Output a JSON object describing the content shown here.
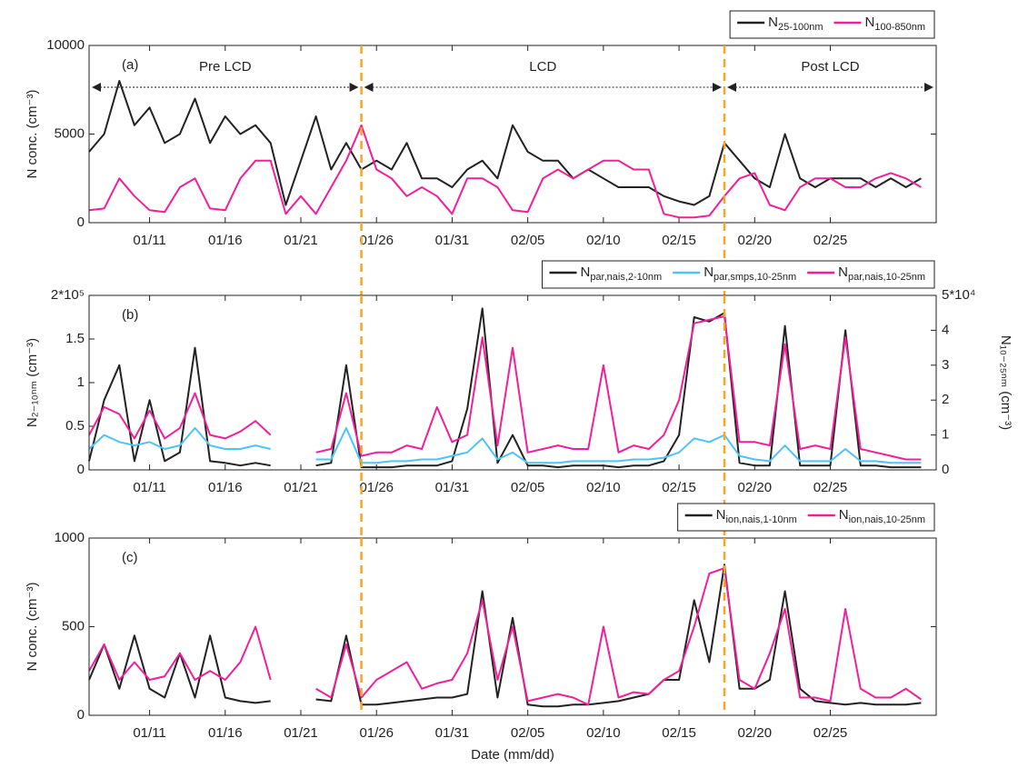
{
  "chart_data": [
    {
      "type": "line",
      "panel_label": "(a)",
      "ylabel": "N conc. (cm⁻³)",
      "period_labels": [
        "Pre LCD",
        "LCD",
        "Post LCD"
      ],
      "vlines": [
        "01/25",
        "02/18"
      ],
      "vline_color": "#f5a623",
      "legend": "above-right",
      "x": [
        "01/07",
        "01/08",
        "01/09",
        "01/10",
        "01/11",
        "01/12",
        "01/13",
        "01/14",
        "01/15",
        "01/16",
        "01/17",
        "01/18",
        "01/19",
        "01/20",
        "01/21",
        "01/22",
        "01/23",
        "01/24",
        "01/25",
        "01/26",
        "01/27",
        "01/28",
        "01/29",
        "01/30",
        "01/31",
        "02/01",
        "02/02",
        "02/03",
        "02/04",
        "02/05",
        "02/06",
        "02/07",
        "02/08",
        "02/09",
        "02/10",
        "02/11",
        "02/12",
        "02/13",
        "02/14",
        "02/15",
        "02/16",
        "02/17",
        "02/18",
        "02/19",
        "02/20",
        "02/21",
        "02/22",
        "02/23",
        "02/24",
        "02/25",
        "02/26",
        "02/27",
        "02/28",
        "02/29",
        "03/01",
        "03/02"
      ],
      "xlim": [
        "01/07",
        "03/03"
      ],
      "xticks": [
        "01/11",
        "01/16",
        "01/21",
        "01/26",
        "01/31",
        "02/05",
        "02/10",
        "02/15",
        "02/20",
        "02/25"
      ],
      "ylim": [
        0,
        10000
      ],
      "yticks": [
        0,
        5000,
        10000
      ],
      "series": [
        {
          "name": "N25-100nm",
          "color": "#222222",
          "values": [
            4000,
            5000,
            8000,
            5500,
            6500,
            4500,
            5000,
            7000,
            4500,
            6000,
            5000,
            5500,
            4500,
            1000,
            3500,
            6000,
            3000,
            4500,
            3000,
            3500,
            3000,
            4500,
            2500,
            2500,
            2000,
            3000,
            3500,
            2500,
            5500,
            4000,
            3500,
            3500,
            2500,
            3000,
            2500,
            2000,
            2000,
            2000,
            1500,
            1200,
            1000,
            1500,
            4500,
            3500,
            2500,
            2000,
            5000,
            2500,
            2000,
            2500,
            2500,
            2500,
            2000,
            2500,
            2000,
            2500
          ]
        },
        {
          "name": "N100-850nm",
          "color": "#f0209a",
          "values": [
            700,
            800,
            2500,
            1500,
            700,
            600,
            2000,
            2500,
            800,
            700,
            2500,
            3500,
            3500,
            500,
            1500,
            500,
            2000,
            3500,
            5500,
            3000,
            2500,
            1500,
            2000,
            1500,
            500,
            2500,
            2500,
            2000,
            700,
            600,
            2500,
            3000,
            2500,
            3000,
            3500,
            3500,
            3000,
            3000,
            500,
            300,
            300,
            400,
            1500,
            2500,
            2800,
            1000,
            700,
            2000,
            2500,
            2500,
            2000,
            2000,
            2500,
            2800,
            2500,
            2000
          ]
        }
      ]
    },
    {
      "type": "line",
      "panel_label": "(b)",
      "ylabel": "N₂₋₁₀ₙₘ (cm⁻³)",
      "y2label": "N₁₀₋₂₅ₙₘ (cm⁻³)",
      "vlines": [
        "01/25",
        "02/18"
      ],
      "vline_color": "#f5a623",
      "legend": "above-right",
      "x": [
        "01/07",
        "01/08",
        "01/09",
        "01/10",
        "01/11",
        "01/12",
        "01/13",
        "01/14",
        "01/15",
        "01/16",
        "01/17",
        "01/18",
        "01/19",
        "01/20",
        "01/21",
        "01/22",
        "01/23",
        "01/24",
        "01/25",
        "01/26",
        "01/27",
        "01/28",
        "01/29",
        "01/30",
        "01/31",
        "02/01",
        "02/02",
        "02/03",
        "02/04",
        "02/05",
        "02/06",
        "02/07",
        "02/08",
        "02/09",
        "02/10",
        "02/11",
        "02/12",
        "02/13",
        "02/14",
        "02/15",
        "02/16",
        "02/17",
        "02/18",
        "02/19",
        "02/20",
        "02/21",
        "02/22",
        "02/23",
        "02/24",
        "02/25",
        "02/26",
        "02/27",
        "02/28",
        "02/29",
        "03/01",
        "03/02"
      ],
      "xlim": [
        "01/07",
        "03/03"
      ],
      "xticks": [
        "01/11",
        "01/16",
        "01/21",
        "01/26",
        "01/31",
        "02/05",
        "02/10",
        "02/15",
        "02/20",
        "02/25"
      ],
      "ylim": [
        0,
        200000
      ],
      "yticks": [
        0,
        {
          "value": 50000,
          "label": "0.5"
        },
        {
          "value": 100000,
          "label": "1"
        },
        {
          "value": 150000,
          "label": "1.5"
        },
        {
          "value": 200000,
          "label": "2*10⁵"
        }
      ],
      "y2lim": [
        0,
        50000
      ],
      "y2ticks": [
        0,
        {
          "value": 10000,
          "label": "1"
        },
        {
          "value": 20000,
          "label": "2"
        },
        {
          "value": 30000,
          "label": "3"
        },
        {
          "value": 40000,
          "label": "4"
        },
        {
          "value": 50000,
          "label": "5*10⁴"
        }
      ],
      "series": [
        {
          "name": "Npar,nais,2-10nm",
          "color": "#222222",
          "values": [
            10000,
            80000,
            120000,
            10000,
            80000,
            10000,
            20000,
            140000,
            10000,
            8000,
            5000,
            8000,
            5000,
            null,
            null,
            5000,
            8000,
            120000,
            3000,
            3000,
            3000,
            5000,
            5000,
            5000,
            10000,
            70000,
            185000,
            8000,
            40000,
            5000,
            5000,
            3000,
            5000,
            5000,
            5000,
            3000,
            5000,
            5000,
            10000,
            40000,
            175000,
            170000,
            180000,
            8000,
            5000,
            5000,
            165000,
            5000,
            5000,
            5000,
            160000,
            5000,
            5000,
            3000,
            3000,
            3000
          ]
        },
        {
          "name": "Npar,smps,10-25nm",
          "color": "#4fc3f7",
          "axis": "y2",
          "values": [
            6000,
            10000,
            8000,
            7000,
            8000,
            6000,
            7000,
            12000,
            7000,
            6000,
            6000,
            7000,
            6000,
            null,
            null,
            3000,
            3000,
            12000,
            2000,
            2000,
            2500,
            2500,
            3000,
            3000,
            4000,
            5000,
            9000,
            3000,
            5000,
            2000,
            2000,
            2000,
            2500,
            2500,
            2500,
            2500,
            3000,
            3000,
            3500,
            5000,
            9000,
            8000,
            10000,
            4000,
            3000,
            2500,
            7000,
            2500,
            2500,
            2500,
            6000,
            2500,
            2500,
            2000,
            2000,
            2000
          ]
        },
        {
          "name": "Npar,nais,10-25nm",
          "color": "#f0209a",
          "axis": "y2",
          "values": [
            10000,
            18000,
            16000,
            9000,
            17000,
            9000,
            12000,
            22000,
            10000,
            9000,
            11000,
            14000,
            10000,
            null,
            null,
            5000,
            6000,
            22000,
            4000,
            5000,
            5000,
            7000,
            6000,
            18000,
            8000,
            10000,
            38000,
            7000,
            35000,
            5000,
            6000,
            7000,
            6000,
            6000,
            30000,
            5000,
            7000,
            6000,
            10000,
            20000,
            42000,
            43000,
            44000,
            8000,
            8000,
            7000,
            36000,
            6000,
            7000,
            6000,
            38000,
            6000,
            5000,
            4000,
            3000,
            3000
          ]
        }
      ]
    },
    {
      "type": "line",
      "panel_label": "(c)",
      "ylabel": "N conc. (cm⁻³)",
      "xlabel": "Date (mm/dd)",
      "vlines": [
        "01/25",
        "02/18"
      ],
      "vline_color": "#f5a623",
      "legend": "above-right",
      "x": [
        "01/07",
        "01/08",
        "01/09",
        "01/10",
        "01/11",
        "01/12",
        "01/13",
        "01/14",
        "01/15",
        "01/16",
        "01/17",
        "01/18",
        "01/19",
        "01/20",
        "01/21",
        "01/22",
        "01/23",
        "01/24",
        "01/25",
        "01/26",
        "01/27",
        "01/28",
        "01/29",
        "01/30",
        "01/31",
        "02/01",
        "02/02",
        "02/03",
        "02/04",
        "02/05",
        "02/06",
        "02/07",
        "02/08",
        "02/09",
        "02/10",
        "02/11",
        "02/12",
        "02/13",
        "02/14",
        "02/15",
        "02/16",
        "02/17",
        "02/18",
        "02/19",
        "02/20",
        "02/21",
        "02/22",
        "02/23",
        "02/24",
        "02/25",
        "02/26",
        "02/27",
        "02/28",
        "02/29",
        "03/01",
        "03/02"
      ],
      "xlim": [
        "01/07",
        "03/03"
      ],
      "xticks": [
        "01/11",
        "01/16",
        "01/21",
        "01/26",
        "01/31",
        "02/05",
        "02/10",
        "02/15",
        "02/20",
        "02/25"
      ],
      "ylim": [
        0,
        1000
      ],
      "yticks": [
        0,
        500,
        1000
      ],
      "series": [
        {
          "name": "Nion,nais,1-10nm",
          "color": "#222222",
          "values": [
            200,
            400,
            150,
            450,
            150,
            100,
            350,
            100,
            450,
            100,
            80,
            70,
            80,
            null,
            null,
            90,
            80,
            450,
            60,
            60,
            70,
            80,
            90,
            100,
            100,
            120,
            700,
            100,
            550,
            60,
            50,
            50,
            60,
            60,
            70,
            80,
            100,
            120,
            200,
            200,
            650,
            300,
            850,
            150,
            150,
            200,
            700,
            150,
            80,
            70,
            60,
            70,
            60,
            60,
            60,
            70
          ]
        },
        {
          "name": "Nion,nais,10-25nm",
          "color": "#f0209a",
          "values": [
            250,
            400,
            200,
            300,
            200,
            220,
            350,
            200,
            250,
            200,
            300,
            500,
            200,
            null,
            null,
            150,
            100,
            400,
            100,
            200,
            250,
            300,
            150,
            180,
            200,
            350,
            650,
            200,
            500,
            80,
            100,
            120,
            100,
            60,
            500,
            100,
            130,
            120,
            200,
            250,
            500,
            800,
            830,
            200,
            150,
            350,
            600,
            100,
            100,
            80,
            600,
            150,
            100,
            100,
            150,
            90
          ]
        }
      ]
    }
  ]
}
